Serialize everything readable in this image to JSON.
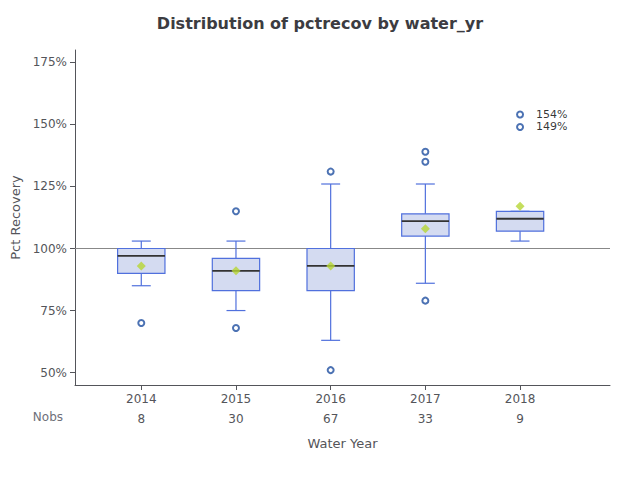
{
  "chart_data": {
    "type": "boxplot",
    "title": "Distribution of pctrecov by water_yr",
    "xlabel": "Water Year",
    "ylabel": "Pct Recovery",
    "x": [
      2014,
      2015,
      2016,
      2017,
      2018
    ],
    "whisker_low": [
      85,
      75,
      63,
      86,
      103
    ],
    "q1": [
      90,
      83,
      83,
      105,
      107
    ],
    "median": [
      97,
      91,
      93,
      111,
      112
    ],
    "q3": [
      100,
      96,
      100,
      114,
      115
    ],
    "whisker_high": [
      103,
      103,
      126,
      126,
      115
    ],
    "mean": [
      93,
      91,
      93,
      108,
      117
    ],
    "outliers": [
      [
        70
      ],
      [
        68,
        115
      ],
      [
        51,
        131
      ],
      [
        79,
        135,
        139
      ],
      [
        149,
        154
      ]
    ],
    "annotations": [
      {
        "x": 2018,
        "y": 154,
        "text": "154%"
      },
      {
        "x": 2018,
        "y": 149,
        "text": "149%"
      }
    ],
    "hline": 100,
    "nobs_label": "Nobs",
    "nobs": [
      8,
      30,
      67,
      33,
      9
    ],
    "xlim": [
      2013.3,
      2018.95
    ],
    "xticks": [
      2014,
      2015,
      2016,
      2017,
      2018
    ],
    "ylim": [
      45,
      180
    ],
    "yticks": [
      {
        "value": 50,
        "label": "50%"
      },
      {
        "value": 75,
        "label": "75%"
      },
      {
        "value": 100,
        "label": "100%"
      },
      {
        "value": 125,
        "label": "125%"
      },
      {
        "value": 150,
        "label": "150%"
      },
      {
        "value": 175,
        "label": "175%"
      }
    ],
    "grid": false
  }
}
